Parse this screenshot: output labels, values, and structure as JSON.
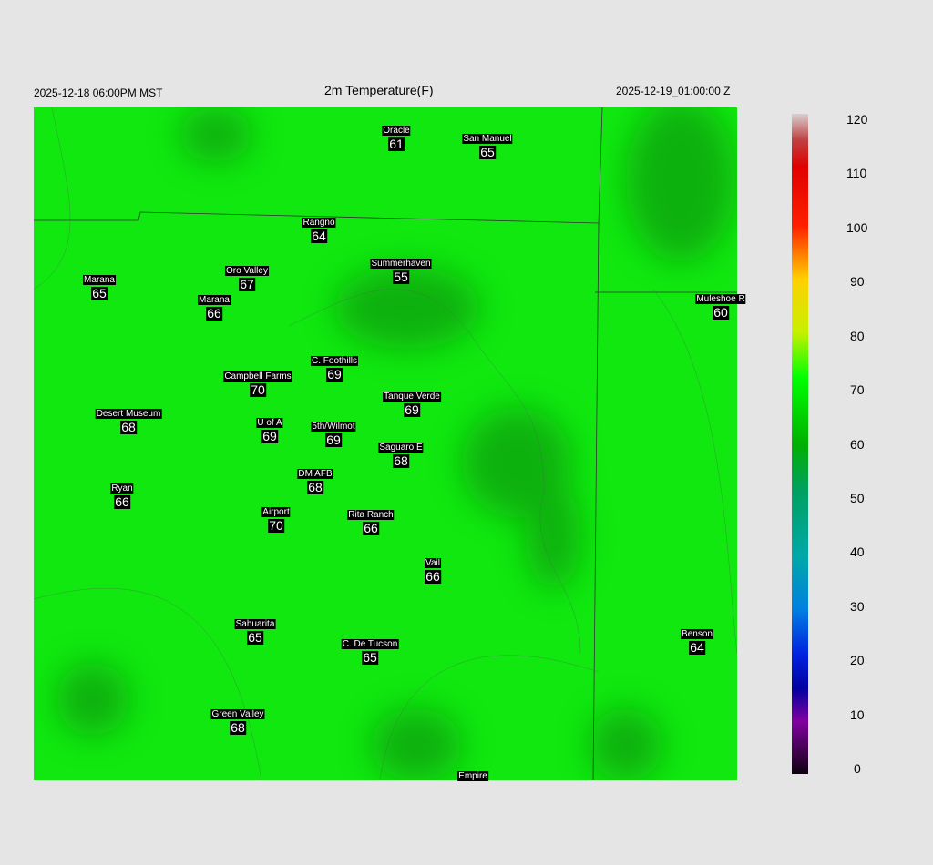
{
  "header": {
    "left": "2025-12-18 06:00PM MST",
    "title": "2m Temperature(F)",
    "right": "2025-12-19_01:00:00 Z"
  },
  "stations": [
    {
      "name": "Oracle",
      "value": 61
    },
    {
      "name": "San Manuel",
      "value": 65
    },
    {
      "name": "Rangno",
      "value": 64
    },
    {
      "name": "Summerhaven",
      "value": 55
    },
    {
      "name": "Marana",
      "value": 65
    },
    {
      "name": "Oro Valley",
      "value": 67
    },
    {
      "name": "Marana",
      "value": 66
    },
    {
      "name": "Muleshoe R",
      "value": 60
    },
    {
      "name": "C. Foothills",
      "value": 69
    },
    {
      "name": "Campbell Farms",
      "value": 70
    },
    {
      "name": "Tanque Verde",
      "value": 69
    },
    {
      "name": "Desert Museum",
      "value": 68
    },
    {
      "name": "U of A",
      "value": 69
    },
    {
      "name": "5th/Wilmot",
      "value": 69
    },
    {
      "name": "Saguaro E",
      "value": 68
    },
    {
      "name": "DM AFB",
      "value": 68
    },
    {
      "name": "Ryan",
      "value": 66
    },
    {
      "name": "Airport",
      "value": 70
    },
    {
      "name": "Rita Ranch",
      "value": 66
    },
    {
      "name": "Vail",
      "value": 66
    },
    {
      "name": "Sahuarita",
      "value": 65
    },
    {
      "name": "C. De Tucson",
      "value": 65
    },
    {
      "name": "Benson",
      "value": 64
    },
    {
      "name": "Green Valley",
      "value": 68
    },
    {
      "name": "Empire"
    }
  ],
  "colorbar": {
    "lim": [
      0,
      120
    ],
    "ticks": [
      0,
      10,
      20,
      30,
      40,
      50,
      60,
      70,
      80,
      90,
      100,
      110,
      120
    ]
  }
}
